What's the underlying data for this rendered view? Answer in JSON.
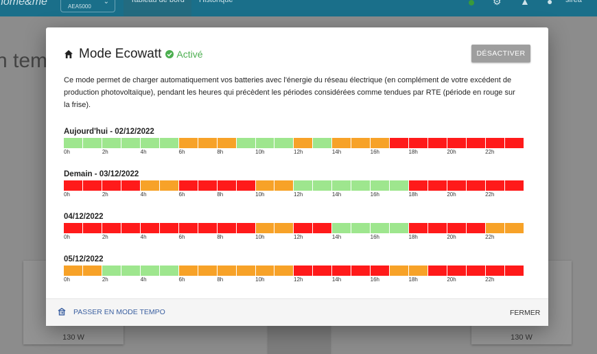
{
  "app": {
    "brand": "home&me",
    "site": "AEA5000",
    "nav": [
      "Tableau de bord",
      "Historique"
    ],
    "user": "sirea",
    "bg_heading": "n temp",
    "bg_card_value": "130 W"
  },
  "modal": {
    "title": "Mode Ecowatt",
    "status": "Activé",
    "deactivate_label": "DÉSACTIVER",
    "description": "Ce mode permet de charger automatiquement vos batteries avec l'énergie du réseau électrique (en complément de votre excédent de production photovoltaïque), pendant les heures qui précèdent les périodes considérées comme tendues par RTE (période en rouge sur la frise).",
    "tick_labels": [
      "0h",
      "2h",
      "4h",
      "6h",
      "8h",
      "10h",
      "12h",
      "14h",
      "16h",
      "18h",
      "20h",
      "22h"
    ],
    "days": [
      {
        "title": "Aujourd'hui - 02/12/2022",
        "hours": "GGGGGGOOOGGGOGOOOrrrrrrr"
      },
      {
        "title": "Demain - 03/12/2022",
        "hours": "rrrrOOrrrrOOGGGGGGrrrrrr"
      },
      {
        "title": "04/12/2022",
        "hours": "rrrrrrrrrrOOrrGGGGrrrrOO"
      },
      {
        "title": "05/12/2022",
        "hours": "OOGGGGOOOOOOrrrrrOOrrrrr"
      }
    ],
    "legend_colors": {
      "G": "#9ee68e",
      "O": "#f7a228",
      "r": "#ff1a1a"
    },
    "footer": {
      "tempo_label": "PASSER EN MODE TEMPO",
      "close_label": "FERMER"
    }
  }
}
